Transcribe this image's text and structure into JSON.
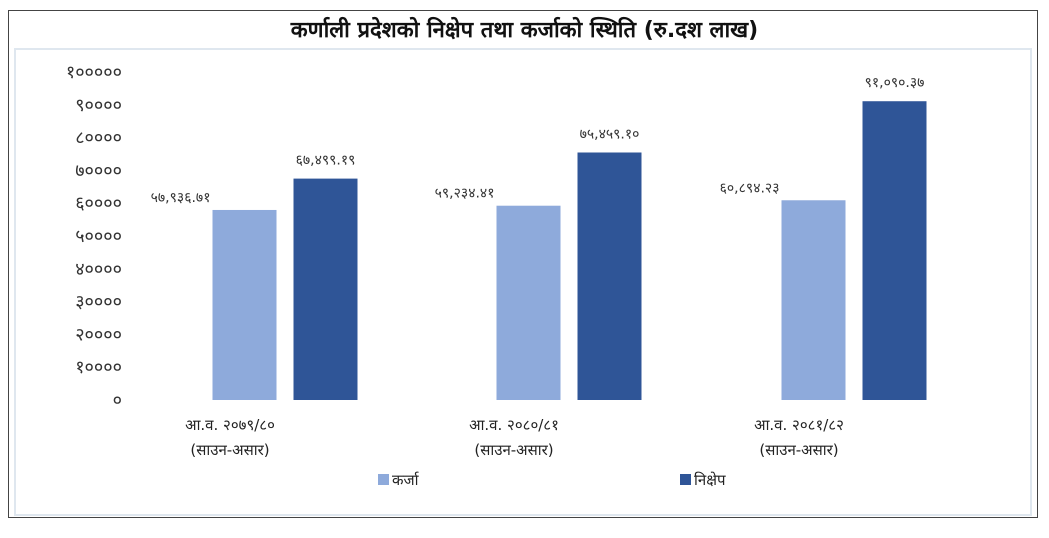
{
  "chart_data": {
    "type": "bar",
    "title": "कर्णाली प्रदेशको निक्षेप तथा कर्जाको स्थिति (रु.दश लाख)",
    "categories": [
      [
        "आ.व. २०७९/८०",
        "(साउन-असार)"
      ],
      [
        "आ.व. २०८०/८१",
        "(साउन-असार)"
      ],
      [
        "आ.व. २०८१/८२",
        "(साउन-असार)"
      ]
    ],
    "series": [
      {
        "name": "कर्जा",
        "color": "#8eaadb",
        "values": [
          57936.71,
          59234.41,
          60894.23
        ],
        "labels": [
          "५७,९३६.७१",
          "५९,२३४.४१",
          "६०,८९४.२३"
        ]
      },
      {
        "name": "निक्षेप",
        "color": "#2f5597",
        "values": [
          67499.19,
          75459.1,
          91090.37
        ],
        "labels": [
          "६७,४९९.१९",
          "७५,४५९.१०",
          "९१,०९०.३७"
        ]
      }
    ],
    "ylim": [
      0,
      100000
    ],
    "yticks": [
      "०",
      "१००००",
      "२००००",
      "३००००",
      "४००००",
      "५००००",
      "६००००",
      "७००००",
      "८००००",
      "९००००",
      "१०००००"
    ],
    "grid": false,
    "legend": "bottom"
  }
}
